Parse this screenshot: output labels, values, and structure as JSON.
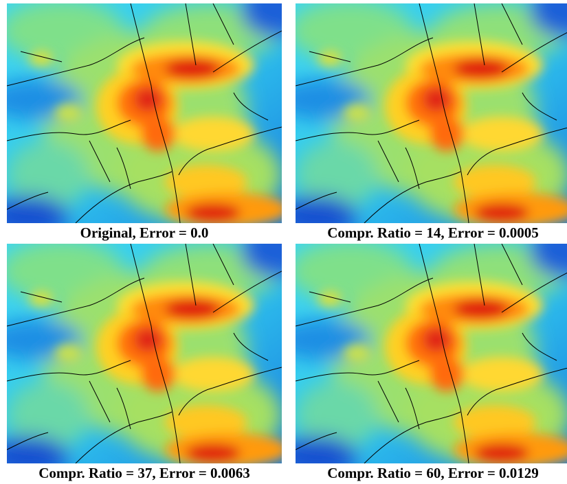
{
  "panels": [
    {
      "caption": "Original, Error = 0.0"
    },
    {
      "caption": "Compr. Ratio = 14, Error = 0.0005"
    },
    {
      "caption": "Compr. Ratio = 37, Error = 0.0063"
    },
    {
      "caption": "Compr. Ratio = 60, Error = 0.0129"
    }
  ]
}
